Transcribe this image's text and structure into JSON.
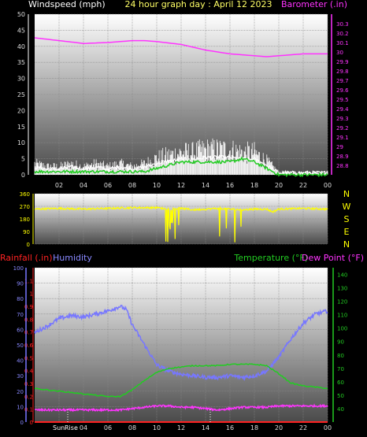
{
  "title": "24 hour graph day : April 12 2023",
  "chart_data": [
    {
      "type": "line",
      "panel": "wind-barometer",
      "xlabel": "",
      "x_ticks": [
        "02",
        "04",
        "06",
        "08",
        "10",
        "12",
        "14",
        "16",
        "18",
        "20",
        "22",
        "00"
      ],
      "ylabel_left": "Windspeed (mph)",
      "ylim_left": [
        0,
        50
      ],
      "y_ticks_left": [
        "0",
        "5",
        "10",
        "15",
        "20",
        "25",
        "30",
        "35",
        "40",
        "45",
        "50"
      ],
      "ylabel_right": "Barometer (.in)",
      "ylim_right": [
        28.7,
        30.4
      ],
      "y_ticks_right": [
        "28.8",
        "28.9",
        "29",
        "29.1",
        "29.2",
        "29.3",
        "29.4",
        "29.5",
        "29.6",
        "29.7",
        "29.8",
        "29.9",
        "30",
        "30.1",
        "30.2",
        "30.3"
      ],
      "series": [
        {
          "axis": "right",
          "x": [
            0,
            2,
            4,
            6,
            8,
            9,
            10,
            12,
            14,
            16,
            18,
            19,
            20,
            22,
            24
          ],
          "values": [
            30.15,
            30.12,
            30.09,
            30.1,
            30.12,
            30.12,
            30.11,
            30.08,
            30.02,
            29.98,
            29.96,
            29.95,
            29.96,
            29.98,
            29.98
          ]
        },
        {
          "axis": "left",
          "x": [
            0,
            1,
            2,
            3,
            4,
            5,
            6,
            7,
            8,
            9,
            10,
            11,
            12,
            13,
            14,
            15,
            16,
            17,
            18,
            19,
            20,
            21,
            22,
            23,
            24
          ],
          "values": [
            4,
            3,
            3,
            4,
            3,
            4,
            3,
            4,
            3,
            4,
            6,
            7,
            8,
            8,
            9,
            9,
            9,
            8,
            8,
            5,
            1,
            1,
            1,
            1,
            1
          ]
        },
        {
          "axis": "left",
          "x": [
            0,
            1,
            2,
            3,
            4,
            5,
            6,
            7,
            8,
            9,
            10,
            11,
            12,
            13,
            14,
            15,
            16,
            17,
            18,
            19,
            20,
            21,
            22,
            23,
            24
          ],
          "values": [
            1,
            1,
            1,
            1,
            1,
            1,
            1,
            1,
            1,
            1,
            2,
            3,
            4,
            4,
            4,
            4,
            4,
            5,
            4,
            2,
            0,
            0,
            0,
            0,
            0
          ]
        }
      ]
    },
    {
      "type": "line",
      "panel": "wind-direction",
      "ylim": [
        0,
        360
      ],
      "y_ticks": [
        "0",
        "90",
        "180",
        "270",
        "360"
      ],
      "compass_labels": [
        "N",
        "W",
        "S",
        "E",
        "N"
      ],
      "series": [
        {
          "x": [
            0,
            2,
            4,
            6,
            8,
            10,
            11,
            12,
            13,
            14,
            15,
            16,
            17,
            18,
            19,
            19.5,
            20,
            22,
            24
          ],
          "values": [
            250,
            255,
            250,
            255,
            260,
            260,
            250,
            255,
            245,
            250,
            255,
            250,
            245,
            250,
            250,
            230,
            250,
            255,
            250
          ]
        }
      ]
    },
    {
      "type": "line",
      "panel": "temp-humidity-rain",
      "x_ticks": [
        "02",
        "04",
        "06",
        "08",
        "10",
        "12",
        "14",
        "16",
        "18",
        "20",
        "22",
        "00"
      ],
      "sun_labels": [
        "Sun",
        "Rise"
      ],
      "ylabel_left_outer": "Rainfall (.in)",
      "ylim_left_outer": [
        0,
        1.2
      ],
      "y_ticks_left_outer": [
        "0",
        "0.1",
        "0.2",
        "0.3",
        "0.4",
        "0.5",
        "0.6",
        "0.7",
        "0.8",
        "0.9",
        "1",
        "1.1"
      ],
      "ylabel_left_inner": "Humidity",
      "ylim_left_inner": [
        0,
        100
      ],
      "y_ticks_left_inner": [
        "0",
        "10",
        "20",
        "30",
        "40",
        "50",
        "60",
        "70",
        "80",
        "90",
        "100"
      ],
      "ylabel_right": "Temperature (°F)",
      "ylabel_right_2": "Dew Point (°F)",
      "ylim_right": [
        30,
        145
      ],
      "y_ticks_right": [
        "40",
        "50",
        "60",
        "70",
        "80",
        "90",
        "100",
        "110",
        "120",
        "130",
        "140"
      ],
      "series": [
        {
          "axis": "left_inner",
          "x": [
            0,
            1,
            2,
            3,
            4,
            5,
            6,
            7,
            7.5,
            8,
            9,
            10,
            11,
            12,
            13,
            14,
            15,
            16,
            17,
            18,
            19,
            20,
            21,
            22,
            23,
            24
          ],
          "values": [
            58,
            62,
            67,
            69,
            68,
            70,
            72,
            75,
            73,
            63,
            50,
            37,
            33,
            31,
            30,
            29,
            29,
            30,
            29,
            30,
            33,
            42,
            54,
            64,
            70,
            72
          ]
        },
        {
          "axis": "right",
          "x": [
            0,
            1,
            2,
            3,
            4,
            5,
            6,
            7,
            8,
            9,
            10,
            11,
            12,
            13,
            14,
            15,
            16,
            17,
            18,
            19,
            20,
            21,
            22,
            23,
            24
          ],
          "values": [
            55,
            54,
            53,
            52,
            51,
            50,
            49,
            49,
            54,
            61,
            67,
            70,
            71,
            72,
            72,
            72,
            73,
            73,
            73,
            72,
            66,
            59,
            57,
            56,
            55
          ]
        },
        {
          "axis": "right",
          "x": [
            0,
            1,
            2,
            3,
            4,
            5,
            6,
            7,
            8,
            9,
            10,
            11,
            12,
            13,
            14,
            15,
            16,
            17,
            18,
            19,
            20,
            21,
            22,
            23,
            24
          ],
          "values": [
            39,
            39,
            39,
            39,
            39,
            39,
            39,
            39,
            40,
            41,
            42,
            42,
            41,
            41,
            40,
            39,
            40,
            41,
            41,
            41,
            42,
            42,
            42,
            42,
            42
          ]
        },
        {
          "axis": "left_outer",
          "x": [
            0,
            24
          ],
          "values": [
            0,
            0
          ]
        }
      ]
    }
  ],
  "colors": {
    "windspeed": "#ffffff",
    "gust": "#ffffff",
    "average": "#22cc22",
    "barometer": "#ff33ff",
    "direction": "#ffff00",
    "humidity": "#7777ff",
    "temperature": "#22cc22",
    "dewpoint": "#ff33ff",
    "rainfall": "#ff2222",
    "axis_text": "#dddddd"
  }
}
